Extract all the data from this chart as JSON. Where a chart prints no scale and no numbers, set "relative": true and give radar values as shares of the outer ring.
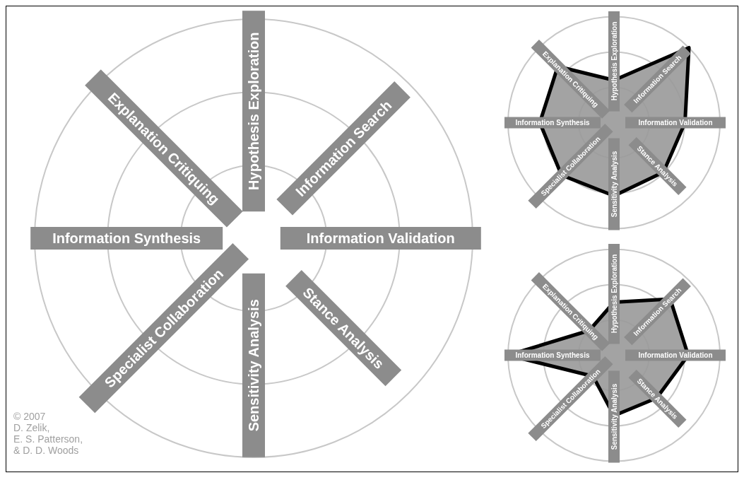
{
  "chart_data": [
    {
      "type": "radar",
      "categories": [
        "Hypothesis Exploration",
        "Information Search",
        "Information Validation",
        "Stance Analysis",
        "Sensitivity Analysis",
        "Specialist Collaboration",
        "Information Synthesis",
        "Explanation Critiquing"
      ],
      "relative": true,
      "grid": true,
      "annotations": [
        "© 2007\nD. Zelik,\nE. S. Patterson,\n& D. D. Woods"
      ]
    },
    {
      "type": "radar",
      "categories": [
        "Hypothesis Exploration",
        "Information Search",
        "Information Validation",
        "Stance Analysis",
        "Sensitivity Analysis",
        "Specialist Collaboration",
        "Information Synthesis",
        "Explanation Critiquing"
      ],
      "relative": true,
      "grid": true,
      "series": [
        {
          "color": "#999999",
          "values": [
            0.4,
            1,
            0.67,
            0.66,
            0.69,
            0.7,
            0.7,
            0.75
          ]
        }
      ]
    },
    {
      "type": "radar",
      "categories": [
        "Hypothesis Exploration",
        "Information Search",
        "Information Validation",
        "Stance Analysis",
        "Sensitivity Analysis",
        "Specialist Collaboration",
        "Information Synthesis",
        "Explanation Critiquing"
      ],
      "relative": true,
      "grid": true,
      "series": [
        {
          "color": "#999999",
          "values": [
            0.5,
            0.75,
            0.7,
            0.57,
            0.57,
            0.28,
            1,
            0.33
          ]
        }
      ]
    }
  ]
}
